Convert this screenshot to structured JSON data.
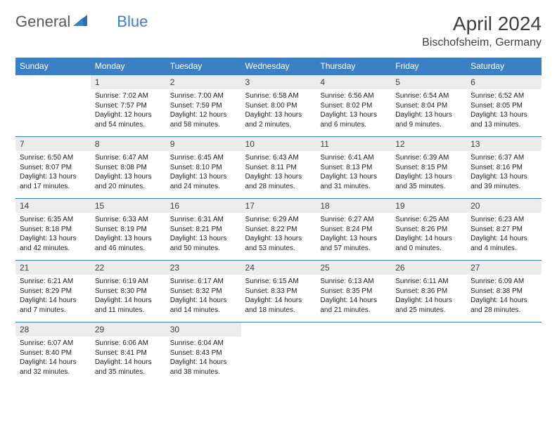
{
  "brand": {
    "part1": "General",
    "part2": "Blue"
  },
  "title": "April 2024",
  "location": "Bischofsheim, Germany",
  "colors": {
    "header_bg": "#3b7fc4",
    "header_fg": "#ffffff",
    "daynum_bg": "#ececec",
    "text": "#202020",
    "title": "#404040",
    "border": "#3b7fc4"
  },
  "font": {
    "family": "Arial",
    "title_size": 28,
    "location_size": 16,
    "th_size": 12,
    "daynum_size": 12,
    "body_size": 10
  },
  "weekdays": [
    "Sunday",
    "Monday",
    "Tuesday",
    "Wednesday",
    "Thursday",
    "Friday",
    "Saturday"
  ],
  "weeks": [
    [
      {
        "n": "",
        "sr": "",
        "ss": "",
        "dl": ""
      },
      {
        "n": "1",
        "sr": "Sunrise: 7:02 AM",
        "ss": "Sunset: 7:57 PM",
        "dl": "Daylight: 12 hours and 54 minutes."
      },
      {
        "n": "2",
        "sr": "Sunrise: 7:00 AM",
        "ss": "Sunset: 7:59 PM",
        "dl": "Daylight: 12 hours and 58 minutes."
      },
      {
        "n": "3",
        "sr": "Sunrise: 6:58 AM",
        "ss": "Sunset: 8:00 PM",
        "dl": "Daylight: 13 hours and 2 minutes."
      },
      {
        "n": "4",
        "sr": "Sunrise: 6:56 AM",
        "ss": "Sunset: 8:02 PM",
        "dl": "Daylight: 13 hours and 6 minutes."
      },
      {
        "n": "5",
        "sr": "Sunrise: 6:54 AM",
        "ss": "Sunset: 8:04 PM",
        "dl": "Daylight: 13 hours and 9 minutes."
      },
      {
        "n": "6",
        "sr": "Sunrise: 6:52 AM",
        "ss": "Sunset: 8:05 PM",
        "dl": "Daylight: 13 hours and 13 minutes."
      }
    ],
    [
      {
        "n": "7",
        "sr": "Sunrise: 6:50 AM",
        "ss": "Sunset: 8:07 PM",
        "dl": "Daylight: 13 hours and 17 minutes."
      },
      {
        "n": "8",
        "sr": "Sunrise: 6:47 AM",
        "ss": "Sunset: 8:08 PM",
        "dl": "Daylight: 13 hours and 20 minutes."
      },
      {
        "n": "9",
        "sr": "Sunrise: 6:45 AM",
        "ss": "Sunset: 8:10 PM",
        "dl": "Daylight: 13 hours and 24 minutes."
      },
      {
        "n": "10",
        "sr": "Sunrise: 6:43 AM",
        "ss": "Sunset: 8:11 PM",
        "dl": "Daylight: 13 hours and 28 minutes."
      },
      {
        "n": "11",
        "sr": "Sunrise: 6:41 AM",
        "ss": "Sunset: 8:13 PM",
        "dl": "Daylight: 13 hours and 31 minutes."
      },
      {
        "n": "12",
        "sr": "Sunrise: 6:39 AM",
        "ss": "Sunset: 8:15 PM",
        "dl": "Daylight: 13 hours and 35 minutes."
      },
      {
        "n": "13",
        "sr": "Sunrise: 6:37 AM",
        "ss": "Sunset: 8:16 PM",
        "dl": "Daylight: 13 hours and 39 minutes."
      }
    ],
    [
      {
        "n": "14",
        "sr": "Sunrise: 6:35 AM",
        "ss": "Sunset: 8:18 PM",
        "dl": "Daylight: 13 hours and 42 minutes."
      },
      {
        "n": "15",
        "sr": "Sunrise: 6:33 AM",
        "ss": "Sunset: 8:19 PM",
        "dl": "Daylight: 13 hours and 46 minutes."
      },
      {
        "n": "16",
        "sr": "Sunrise: 6:31 AM",
        "ss": "Sunset: 8:21 PM",
        "dl": "Daylight: 13 hours and 50 minutes."
      },
      {
        "n": "17",
        "sr": "Sunrise: 6:29 AM",
        "ss": "Sunset: 8:22 PM",
        "dl": "Daylight: 13 hours and 53 minutes."
      },
      {
        "n": "18",
        "sr": "Sunrise: 6:27 AM",
        "ss": "Sunset: 8:24 PM",
        "dl": "Daylight: 13 hours and 57 minutes."
      },
      {
        "n": "19",
        "sr": "Sunrise: 6:25 AM",
        "ss": "Sunset: 8:26 PM",
        "dl": "Daylight: 14 hours and 0 minutes."
      },
      {
        "n": "20",
        "sr": "Sunrise: 6:23 AM",
        "ss": "Sunset: 8:27 PM",
        "dl": "Daylight: 14 hours and 4 minutes."
      }
    ],
    [
      {
        "n": "21",
        "sr": "Sunrise: 6:21 AM",
        "ss": "Sunset: 8:29 PM",
        "dl": "Daylight: 14 hours and 7 minutes."
      },
      {
        "n": "22",
        "sr": "Sunrise: 6:19 AM",
        "ss": "Sunset: 8:30 PM",
        "dl": "Daylight: 14 hours and 11 minutes."
      },
      {
        "n": "23",
        "sr": "Sunrise: 6:17 AM",
        "ss": "Sunset: 8:32 PM",
        "dl": "Daylight: 14 hours and 14 minutes."
      },
      {
        "n": "24",
        "sr": "Sunrise: 6:15 AM",
        "ss": "Sunset: 8:33 PM",
        "dl": "Daylight: 14 hours and 18 minutes."
      },
      {
        "n": "25",
        "sr": "Sunrise: 6:13 AM",
        "ss": "Sunset: 8:35 PM",
        "dl": "Daylight: 14 hours and 21 minutes."
      },
      {
        "n": "26",
        "sr": "Sunrise: 6:11 AM",
        "ss": "Sunset: 8:36 PM",
        "dl": "Daylight: 14 hours and 25 minutes."
      },
      {
        "n": "27",
        "sr": "Sunrise: 6:09 AM",
        "ss": "Sunset: 8:38 PM",
        "dl": "Daylight: 14 hours and 28 minutes."
      }
    ],
    [
      {
        "n": "28",
        "sr": "Sunrise: 6:07 AM",
        "ss": "Sunset: 8:40 PM",
        "dl": "Daylight: 14 hours and 32 minutes."
      },
      {
        "n": "29",
        "sr": "Sunrise: 6:06 AM",
        "ss": "Sunset: 8:41 PM",
        "dl": "Daylight: 14 hours and 35 minutes."
      },
      {
        "n": "30",
        "sr": "Sunrise: 6:04 AM",
        "ss": "Sunset: 8:43 PM",
        "dl": "Daylight: 14 hours and 38 minutes."
      },
      {
        "n": "",
        "sr": "",
        "ss": "",
        "dl": ""
      },
      {
        "n": "",
        "sr": "",
        "ss": "",
        "dl": ""
      },
      {
        "n": "",
        "sr": "",
        "ss": "",
        "dl": ""
      },
      {
        "n": "",
        "sr": "",
        "ss": "",
        "dl": ""
      }
    ]
  ]
}
